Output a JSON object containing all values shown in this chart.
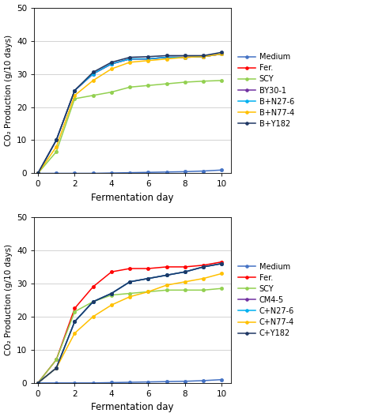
{
  "x": [
    0,
    1,
    2,
    3,
    4,
    5,
    6,
    7,
    8,
    9,
    10
  ],
  "top": {
    "Medium": [
      0,
      0,
      0.0,
      0.0,
      0.1,
      0.2,
      0.3,
      0.4,
      0.5,
      0.7,
      1.0
    ],
    "Fer.": [
      0,
      10.0,
      25.0,
      30.0,
      33.0,
      34.5,
      34.5,
      35.0,
      35.0,
      35.2,
      36.0
    ],
    "SCY": [
      0,
      6.5,
      22.5,
      23.5,
      24.5,
      26.0,
      26.5,
      27.0,
      27.5,
      27.8,
      28.0
    ],
    "BY30-1": [
      0,
      10.0,
      25.0,
      30.0,
      33.0,
      34.5,
      34.5,
      35.0,
      35.0,
      35.2,
      36.0
    ],
    "B+N27-6": [
      0,
      10.0,
      25.0,
      30.0,
      33.0,
      34.5,
      34.5,
      35.0,
      35.0,
      35.2,
      36.0
    ],
    "B+N77-4": [
      0,
      8.0,
      23.5,
      28.0,
      31.5,
      33.5,
      34.0,
      34.5,
      35.0,
      35.2,
      36.0
    ],
    "B+Y182": [
      0,
      10.0,
      25.0,
      30.5,
      33.5,
      35.0,
      35.2,
      35.5,
      35.5,
      35.5,
      36.5
    ]
  },
  "top_colors": {
    "Medium": "#4472C4",
    "Fer.": "#FF0000",
    "SCY": "#92D050",
    "BY30-1": "#7030A0",
    "B+N27-6": "#00B0F0",
    "B+N77-4": "#FFC000",
    "B+Y182": "#1F3864"
  },
  "bottom": {
    "Medium": [
      0,
      0,
      0.0,
      0.0,
      0.1,
      0.2,
      0.3,
      0.4,
      0.5,
      0.7,
      1.0
    ],
    "Fer.": [
      0,
      7.0,
      22.5,
      29.0,
      33.5,
      34.5,
      34.5,
      35.0,
      35.0,
      35.5,
      36.5
    ],
    "SCY": [
      0,
      7.0,
      21.5,
      24.5,
      26.5,
      27.0,
      27.5,
      28.0,
      28.0,
      28.0,
      28.5
    ],
    "CM4-5": [
      0,
      4.5,
      18.5,
      24.5,
      27.0,
      30.5,
      31.5,
      32.5,
      33.5,
      35.0,
      36.0
    ],
    "C+N27-6": [
      0,
      4.5,
      18.5,
      24.5,
      27.0,
      30.5,
      31.5,
      32.5,
      33.5,
      35.0,
      36.0
    ],
    "C+N77-4": [
      0,
      4.5,
      15.0,
      20.0,
      23.5,
      26.0,
      27.5,
      29.5,
      30.5,
      31.5,
      33.0
    ],
    "C+Y182": [
      0,
      4.5,
      18.5,
      24.5,
      27.0,
      30.5,
      31.5,
      32.5,
      33.5,
      35.0,
      36.0
    ]
  },
  "bottom_colors": {
    "Medium": "#4472C4",
    "Fer.": "#FF0000",
    "SCY": "#92D050",
    "CM4-5": "#7030A0",
    "C+N27-6": "#00B0F0",
    "C+N77-4": "#FFC000",
    "C+Y182": "#1F3864"
  },
  "ylim": [
    0,
    50
  ],
  "yticks": [
    0,
    10,
    20,
    30,
    40,
    50
  ],
  "xticks": [
    0,
    2,
    4,
    6,
    8,
    10
  ],
  "xlabel": "Fermentation day",
  "ylabel": "CO₂ Production (g/10 days)"
}
